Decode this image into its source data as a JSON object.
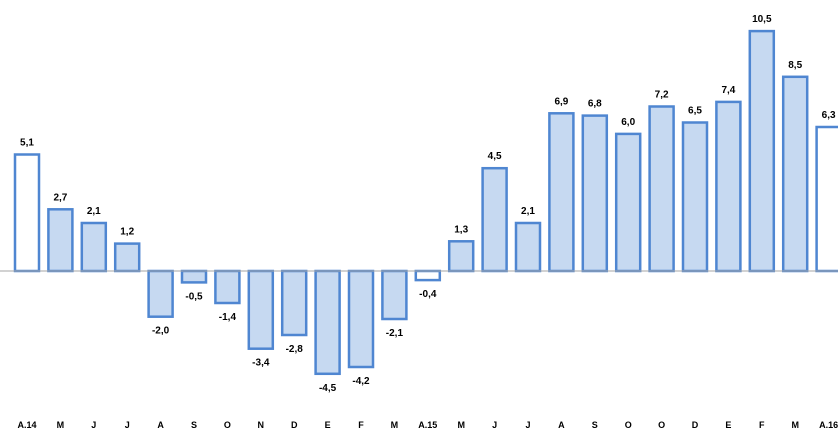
{
  "chart_data": {
    "type": "bar",
    "categories": [
      "A.14",
      "M",
      "J",
      "J",
      "A",
      "S",
      "O",
      "N",
      "D",
      "E",
      "F",
      "M",
      "A.15",
      "M",
      "J",
      "J",
      "A",
      "S",
      "O",
      "O",
      "D",
      "E",
      "F",
      "M",
      "A.16"
    ],
    "values": [
      5.1,
      2.7,
      2.1,
      1.2,
      -2.0,
      -0.5,
      -1.4,
      -3.4,
      -2.8,
      -4.5,
      -4.2,
      -2.1,
      -0.4,
      1.3,
      4.5,
      2.1,
      6.9,
      6.8,
      6.0,
      7.2,
      6.5,
      7.4,
      10.5,
      8.5,
      6.3
    ],
    "value_labels": [
      "5,1",
      "2,7",
      "2,1",
      "1,2",
      "-2,0",
      "-0,5",
      "-1,4",
      "-3,4",
      "-2,8",
      "-4,5",
      "-4,2",
      "-2,1",
      "-0,4",
      "1,3",
      "4,5",
      "2,1",
      "6,9",
      "6,8",
      "6,0",
      "7,2",
      "6,5",
      "7,4",
      "10,5",
      "8,5",
      "6,3"
    ],
    "highlighted_categories": [
      "A.14",
      "A.15",
      "A.16"
    ],
    "title": "",
    "xlabel": "",
    "ylabel": "",
    "ylim": [
      -6,
      11
    ],
    "grid": false,
    "legend": "none",
    "colors": {
      "bar_fill": "#c6d9f1",
      "bar_stroke": "#4f86d1",
      "highlight_fill": "#ffffff",
      "baseline": "#a6a6a6"
    }
  }
}
